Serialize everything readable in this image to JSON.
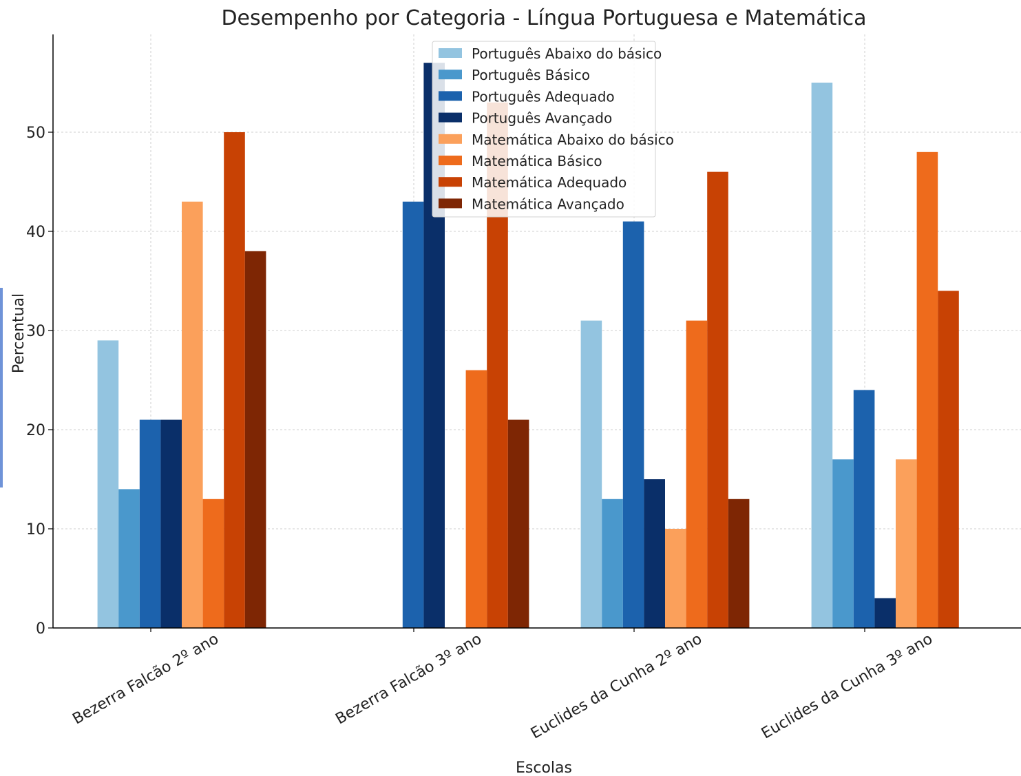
{
  "chart_data": {
    "type": "bar",
    "title": "Desempenho por Categoria - Língua Portuguesa e Matemática",
    "xlabel": "Escolas",
    "ylabel": "Percentual",
    "ylim": [
      0,
      58
    ],
    "yticks": [
      "0",
      "10",
      "20",
      "30",
      "40",
      "50"
    ],
    "grid": true,
    "legend_position": "top-center",
    "categories": [
      "Bezerra Falcão 2º ano",
      "Bezerra Falcão 3º ano",
      "Euclides da Cunha 2º ano",
      "Euclides da Cunha 3º ano"
    ],
    "series": [
      {
        "name": "Português Abaixo do básico",
        "color": "#93c4e0",
        "values": [
          29,
          0,
          31,
          55
        ]
      },
      {
        "name": "Português Básico",
        "color": "#4a98cc",
        "values": [
          14,
          0,
          13,
          17
        ]
      },
      {
        "name": "Português Adequado",
        "color": "#1c62ad",
        "values": [
          21,
          43,
          41,
          24
        ]
      },
      {
        "name": "Português Avançado",
        "color": "#0a2f69",
        "values": [
          21,
          57,
          15,
          3
        ]
      },
      {
        "name": "Matemática Abaixo do básico",
        "color": "#fba05b",
        "values": [
          43,
          0,
          10,
          17
        ]
      },
      {
        "name": "Matemática Básico",
        "color": "#ee6b1c",
        "values": [
          13,
          26,
          31,
          48
        ]
      },
      {
        "name": "Matemática Adequado",
        "color": "#c84204",
        "values": [
          50,
          53,
          46,
          34
        ]
      },
      {
        "name": "Matemática Avançado",
        "color": "#7e2604",
        "values": [
          38,
          21,
          13,
          0
        ]
      }
    ]
  }
}
